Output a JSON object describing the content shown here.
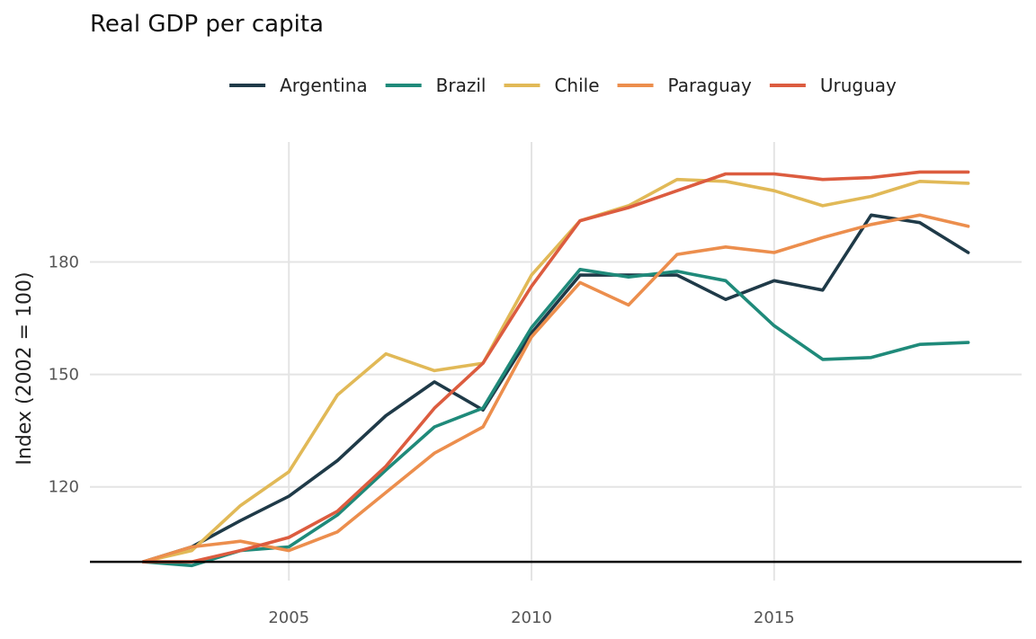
{
  "chart_data": {
    "type": "line",
    "title": "Real GDP per capita",
    "xlabel": "",
    "ylabel": "Index (2002 = 100)",
    "x": [
      2002,
      2003,
      2004,
      2005,
      2006,
      2007,
      2008,
      2009,
      2010,
      2011,
      2012,
      2013,
      2014,
      2015,
      2016,
      2017,
      2018,
      2019
    ],
    "xlim": [
      2000.9,
      2020.1
    ],
    "ylim": [
      95,
      212
    ],
    "x_ticks": [
      2005,
      2010,
      2015
    ],
    "y_ticks": [
      120,
      150,
      180
    ],
    "baseline": 100,
    "grid": true,
    "legend_position": "top",
    "series": [
      {
        "name": "Argentina",
        "color": "#1f3a48",
        "values": [
          100,
          104,
          111,
          117.5,
          127,
          139,
          148,
          140.5,
          161,
          176.5,
          176.5,
          176.5,
          170,
          175,
          172.5,
          192.5,
          190.5,
          182.5
        ]
      },
      {
        "name": "Brazil",
        "color": "#1f8a7a",
        "values": [
          100,
          99,
          103,
          104,
          112.5,
          124.5,
          136,
          141,
          162.5,
          178,
          176,
          177.5,
          175,
          163,
          154,
          154.5,
          158,
          158.5
        ]
      },
      {
        "name": "Chile",
        "color": "#e1b957",
        "values": [
          100,
          103,
          115,
          124,
          144.5,
          155.5,
          151,
          153,
          176.5,
          191,
          195,
          202,
          201.5,
          199,
          195,
          197.5,
          201.5,
          201
        ]
      },
      {
        "name": "Paraguay",
        "color": "#ec8e4d",
        "values": [
          100,
          104,
          105.5,
          103,
          108,
          118.5,
          129,
          136,
          160,
          174.5,
          168.5,
          182,
          184,
          182.5,
          186.5,
          190,
          192.5,
          189.5
        ]
      },
      {
        "name": "Uruguay",
        "color": "#dc5c3f",
        "values": [
          100,
          100,
          103,
          106.5,
          113.5,
          125.5,
          141,
          153,
          173.5,
          191,
          194.5,
          199,
          203.5,
          203.5,
          202,
          202.5,
          204,
          204
        ]
      }
    ]
  }
}
